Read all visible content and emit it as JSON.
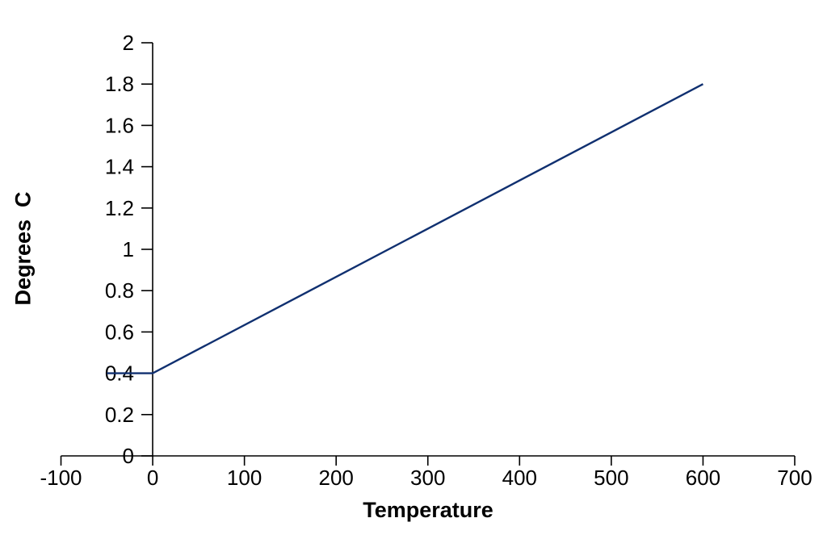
{
  "chart_data": {
    "type": "line",
    "title": "",
    "xlabel": "Temperature",
    "ylabel": "Degrees  C",
    "series": [
      {
        "name": "Degrees C",
        "color": "#103070",
        "points": [
          {
            "x": -50,
            "y": 0.4
          },
          {
            "x": 0,
            "y": 0.4
          },
          {
            "x": 600,
            "y": 1.8
          }
        ]
      }
    ],
    "xlim": [
      -100,
      700
    ],
    "ylim": [
      0,
      2
    ],
    "x_tick_labels": [
      "-100",
      "0",
      "100",
      "200",
      "300",
      "400",
      "500",
      "600",
      "700"
    ],
    "y_tick_labels": [
      "0",
      "0.2",
      "0.4",
      "0.6",
      "0.8",
      "1",
      "1.2",
      "1.4",
      "1.6",
      "1.8",
      "2"
    ],
    "grid": false,
    "legend": false,
    "axis_color": "#000000",
    "tick_label_color": "#000000",
    "background": "#ffffff"
  }
}
